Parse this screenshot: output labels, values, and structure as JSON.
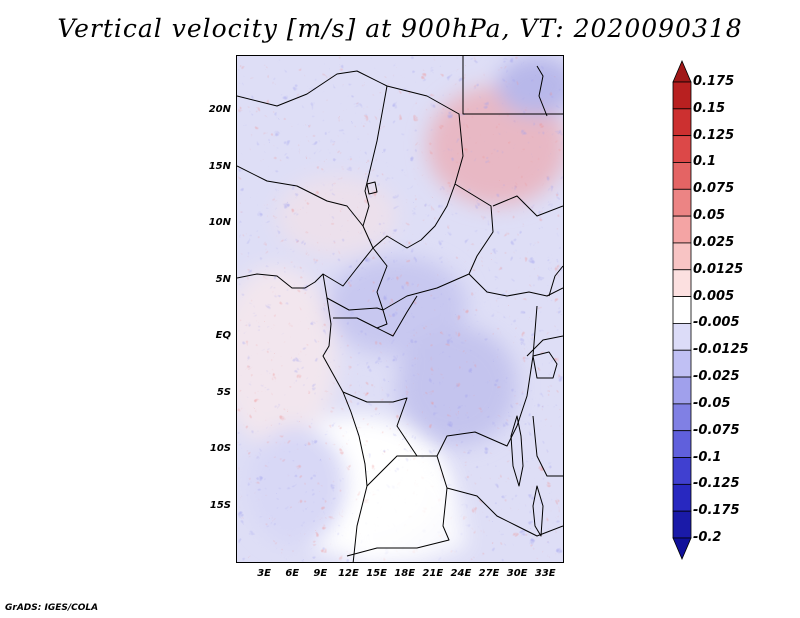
{
  "title": "Vertical velocity [m/s] at 900hPa, VT: 2020090318",
  "footer": "GrADS: IGES/COLA",
  "map": {
    "variable": "Vertical velocity",
    "units": "m/s",
    "level": "900hPa",
    "valid_time": "2020090318",
    "lon_range": [
      0,
      35
    ],
    "lat_range": [
      -20,
      25
    ],
    "lat_ticks": [
      "20N",
      "15N",
      "10N",
      "5N",
      "EQ",
      "5S",
      "10S",
      "15S"
    ],
    "lat_values": [
      20,
      15,
      10,
      5,
      0,
      -5,
      -10,
      -15
    ],
    "lon_ticks": [
      "3E",
      "6E",
      "9E",
      "12E",
      "15E",
      "18E",
      "21E",
      "24E",
      "27E",
      "30E",
      "33E"
    ],
    "lon_values": [
      3,
      6,
      9,
      12,
      15,
      18,
      21,
      24,
      27,
      30,
      33
    ]
  },
  "colorbar": {
    "labels": [
      "0.175",
      "0.15",
      "0.125",
      "0.1",
      "0.075",
      "0.05",
      "0.025",
      "0.0125",
      "0.005",
      "-0.005",
      "-0.0125",
      "-0.025",
      "-0.05",
      "-0.075",
      "-0.1",
      "-0.125",
      "-0.175",
      "-0.2"
    ],
    "colors": [
      "#a01818",
      "#b82020",
      "#cc3030",
      "#dc4848",
      "#e46464",
      "#ec8484",
      "#f4a4a4",
      "#f8c4c4",
      "#fce0e0",
      "#ffffff",
      "#dcdcf8",
      "#c0c0f4",
      "#a0a0ec",
      "#8080e4",
      "#6060dc",
      "#4040d0",
      "#2828c0",
      "#1a1aa8",
      "#10109a"
    ]
  }
}
